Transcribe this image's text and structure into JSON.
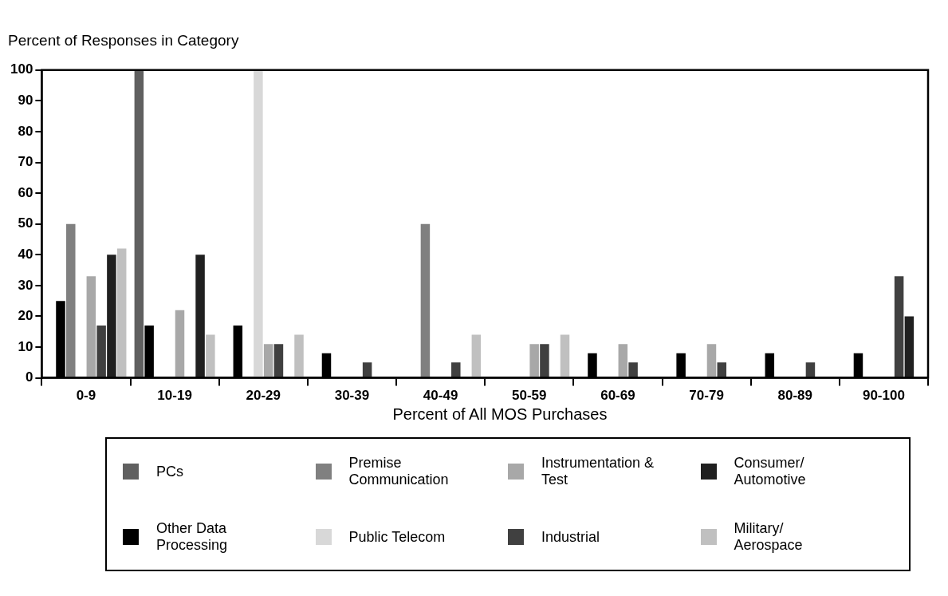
{
  "chart_data": {
    "type": "bar",
    "ylabel": "Percent of Responses in Category",
    "xlabel": "Percent of All MOS Purchases",
    "categories": [
      "0-9",
      "10-19",
      "20-29",
      "30-39",
      "40-49",
      "50-59",
      "60-69",
      "70-79",
      "80-89",
      "90-100"
    ],
    "ylim": [
      0,
      100
    ],
    "yticks": [
      0,
      10,
      20,
      30,
      40,
      50,
      60,
      70,
      80,
      90,
      100
    ],
    "grid": false,
    "legend": "bottom",
    "series": [
      {
        "name": "PCs",
        "color": "#606060",
        "values": [
          0,
          100,
          0,
          0,
          0,
          0,
          0,
          0,
          0,
          0
        ]
      },
      {
        "name": "Other Data Processing",
        "color": "#000000",
        "values": [
          25,
          17,
          17,
          8,
          0,
          0,
          8,
          8,
          8,
          8
        ]
      },
      {
        "name": "Premise Communication",
        "color": "#808080",
        "values": [
          50,
          0,
          0,
          0,
          50,
          0,
          0,
          0,
          0,
          0
        ]
      },
      {
        "name": "Public Telecom",
        "color": "#d8d8d8",
        "values": [
          0,
          0,
          100,
          0,
          0,
          0,
          0,
          0,
          0,
          0
        ]
      },
      {
        "name": "Instrumentation & Test",
        "color": "#a8a8a8",
        "values": [
          33,
          22,
          11,
          0,
          0,
          11,
          11,
          11,
          0,
          0
        ]
      },
      {
        "name": "Industrial",
        "color": "#404040",
        "values": [
          17,
          0,
          11,
          5,
          5,
          11,
          5,
          5,
          5,
          33
        ]
      },
      {
        "name": "Consumer/ Automotive",
        "color": "#202020",
        "values": [
          40,
          40,
          0,
          0,
          0,
          0,
          0,
          0,
          0,
          20
        ]
      },
      {
        "name": "Military/ Aerospace",
        "color": "#c0c0c0",
        "values": [
          42,
          14,
          14,
          0,
          14,
          14,
          0,
          0,
          0,
          0
        ]
      }
    ]
  }
}
